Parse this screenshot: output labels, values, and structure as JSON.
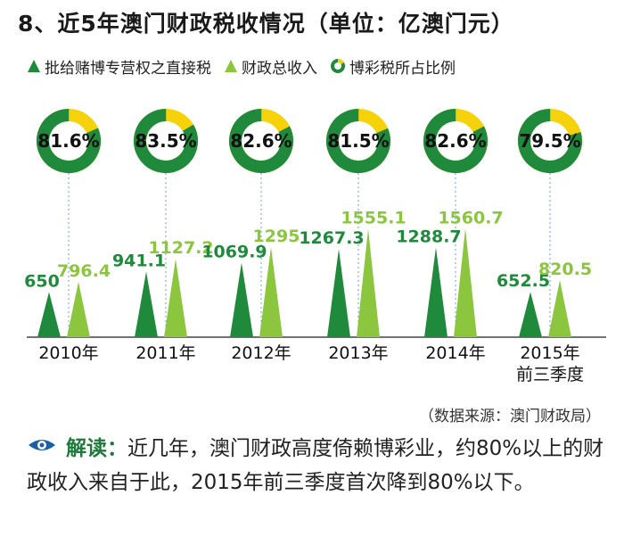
{
  "title": "8、近5年澳门财政税收情况（单位：亿澳门元）",
  "legend": {
    "items": [
      {
        "label": "批给赌博专营权之直接税",
        "icon": "dark-green-triangle-icon",
        "color": "#1f8a3c"
      },
      {
        "label": "财政总收入",
        "icon": "light-green-triangle-icon",
        "color": "#8cc63f"
      },
      {
        "label": "博彩税所占比例",
        "icon": "ring-icon",
        "color": "#1f8a3c"
      }
    ]
  },
  "colors": {
    "dark_green": "#1f8a3c",
    "light_green": "#8cc63f",
    "yellow": "#f5d20a",
    "dash_blue": "#6f9fd8"
  },
  "chart_data": {
    "type": "bar",
    "categories": [
      "2010年",
      "2011年",
      "2012年",
      "2013年",
      "2014年",
      "2015年 前三季度"
    ],
    "category_lines": [
      [
        "2010年"
      ],
      [
        "2011年"
      ],
      [
        "2012年"
      ],
      [
        "2013年"
      ],
      [
        "2014年"
      ],
      [
        "2015年",
        "前三季度"
      ]
    ],
    "series": [
      {
        "name": "批给赌博专营权之直接税",
        "values": [
          650,
          941.1,
          1069.9,
          1267.3,
          1288.7,
          652.5
        ],
        "labels": [
          "650",
          "941.1",
          "1069.9",
          "1267.3",
          "1288.7",
          "652.5"
        ]
      },
      {
        "name": "财政总收入",
        "values": [
          796.4,
          1127.2,
          1295,
          1555.1,
          1560.7,
          820.5
        ],
        "labels": [
          "796.4",
          "1127.2",
          "1295",
          "1555.1",
          "1560.7",
          "820.5"
        ]
      }
    ],
    "ratio": {
      "name": "博彩税所占比例",
      "values": [
        81.6,
        83.5,
        82.6,
        81.5,
        82.6,
        79.5
      ],
      "labels": [
        "81.6%",
        "83.5%",
        "82.6%",
        "81.5%",
        "82.6%",
        "79.5%"
      ]
    },
    "ylim": [
      0,
      1600
    ]
  },
  "source": "（数据来源：澳门财政局）",
  "note": {
    "lead": "解读：",
    "text": "近几年，澳门财政高度倚赖博彩业，约80%以上的财政收入来自于此，2015年前三季度首次降到80%以下。"
  }
}
